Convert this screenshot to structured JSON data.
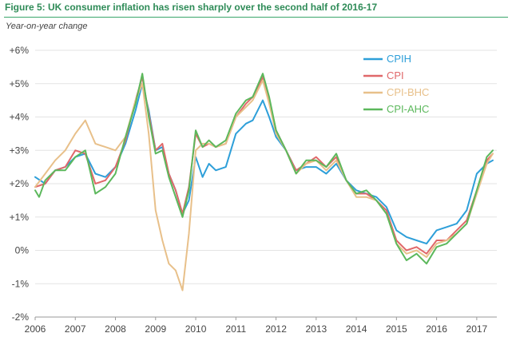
{
  "figure": {
    "title": "Figure 5:  UK consumer inflation has risen sharply over the second half of 2016-17",
    "subtitle": "Year-on-year change"
  },
  "chart_data": {
    "type": "line",
    "title": "Figure 5:  UK consumer inflation has risen sharply over the second half of 2016-17",
    "ylabel": "Year-on-year change",
    "xlabel": "",
    "xlim": [
      2006,
      2017.5
    ],
    "ylim": [
      -2,
      6
    ],
    "y_ticks": [
      {
        "value": 6,
        "label": "+6%"
      },
      {
        "value": 5,
        "label": "+5%"
      },
      {
        "value": 4,
        "label": "+4%"
      },
      {
        "value": 3,
        "label": "+3%"
      },
      {
        "value": 2,
        "label": "+2%"
      },
      {
        "value": 1,
        "label": "+1%"
      },
      {
        "value": 0,
        "label": "0%"
      },
      {
        "value": -1,
        "label": "-1%"
      },
      {
        "value": -2,
        "label": "-2%"
      }
    ],
    "x_ticks": [
      {
        "value": 2006,
        "label": "2006"
      },
      {
        "value": 2007,
        "label": "2007"
      },
      {
        "value": 2008,
        "label": "2008"
      },
      {
        "value": 2009,
        "label": "2009"
      },
      {
        "value": 2010,
        "label": "2010"
      },
      {
        "value": 2011,
        "label": "2011"
      },
      {
        "value": 2012,
        "label": "2012"
      },
      {
        "value": 2013,
        "label": "2013"
      },
      {
        "value": 2014,
        "label": "2014"
      },
      {
        "value": 2015,
        "label": "2015"
      },
      {
        "value": 2016,
        "label": "2016"
      },
      {
        "value": 2017,
        "label": "2017"
      }
    ],
    "grid": "horizontal",
    "legend_position": "top-right",
    "series": [
      {
        "name": "CPIH",
        "color": "#2e9fd9",
        "points": [
          [
            2006,
            2.2
          ],
          [
            2006.25,
            2.0
          ],
          [
            2006.5,
            2.4
          ],
          [
            2006.75,
            2.5
          ],
          [
            2007,
            2.8
          ],
          [
            2007.25,
            2.9
          ],
          [
            2007.5,
            2.3
          ],
          [
            2007.75,
            2.2
          ],
          [
            2008,
            2.5
          ],
          [
            2008.25,
            3.2
          ],
          [
            2008.5,
            4.2
          ],
          [
            2008.67,
            5.0
          ],
          [
            2008.83,
            4.2
          ],
          [
            2009,
            3.0
          ],
          [
            2009.17,
            3.1
          ],
          [
            2009.33,
            2.3
          ],
          [
            2009.5,
            1.8
          ],
          [
            2009.67,
            1.1
          ],
          [
            2009.83,
            1.5
          ],
          [
            2010,
            2.8
          ],
          [
            2010.17,
            2.2
          ],
          [
            2010.33,
            2.6
          ],
          [
            2010.5,
            2.4
          ],
          [
            2010.75,
            2.5
          ],
          [
            2011,
            3.5
          ],
          [
            2011.25,
            3.8
          ],
          [
            2011.42,
            3.9
          ],
          [
            2011.67,
            4.5
          ],
          [
            2011.83,
            4.0
          ],
          [
            2012,
            3.4
          ],
          [
            2012.25,
            3.0
          ],
          [
            2012.5,
            2.4
          ],
          [
            2012.75,
            2.5
          ],
          [
            2013,
            2.5
          ],
          [
            2013.25,
            2.3
          ],
          [
            2013.5,
            2.6
          ],
          [
            2013.75,
            2.1
          ],
          [
            2014,
            1.8
          ],
          [
            2014.25,
            1.7
          ],
          [
            2014.5,
            1.6
          ],
          [
            2014.75,
            1.3
          ],
          [
            2015,
            0.6
          ],
          [
            2015.25,
            0.4
          ],
          [
            2015.5,
            0.3
          ],
          [
            2015.75,
            0.2
          ],
          [
            2016,
            0.6
          ],
          [
            2016.25,
            0.7
          ],
          [
            2016.5,
            0.8
          ],
          [
            2016.75,
            1.2
          ],
          [
            2017,
            2.3
          ],
          [
            2017.25,
            2.6
          ],
          [
            2017.4,
            2.7
          ]
        ]
      },
      {
        "name": "CPI",
        "color": "#e0686a",
        "points": [
          [
            2006,
            1.9
          ],
          [
            2006.25,
            2.0
          ],
          [
            2006.5,
            2.4
          ],
          [
            2006.75,
            2.5
          ],
          [
            2007,
            3.0
          ],
          [
            2007.25,
            2.9
          ],
          [
            2007.5,
            2.0
          ],
          [
            2007.75,
            2.1
          ],
          [
            2008,
            2.5
          ],
          [
            2008.25,
            3.3
          ],
          [
            2008.5,
            4.5
          ],
          [
            2008.67,
            5.2
          ],
          [
            2008.83,
            4.1
          ],
          [
            2009,
            3.0
          ],
          [
            2009.17,
            3.2
          ],
          [
            2009.33,
            2.3
          ],
          [
            2009.5,
            1.8
          ],
          [
            2009.67,
            1.1
          ],
          [
            2009.83,
            1.9
          ],
          [
            2010,
            3.5
          ],
          [
            2010.17,
            3.1
          ],
          [
            2010.33,
            3.2
          ],
          [
            2010.5,
            3.1
          ],
          [
            2010.75,
            3.2
          ],
          [
            2011,
            4.0
          ],
          [
            2011.25,
            4.4
          ],
          [
            2011.42,
            4.6
          ],
          [
            2011.67,
            5.2
          ],
          [
            2011.83,
            4.5
          ],
          [
            2012,
            3.6
          ],
          [
            2012.25,
            3.0
          ],
          [
            2012.5,
            2.4
          ],
          [
            2012.75,
            2.6
          ],
          [
            2013,
            2.8
          ],
          [
            2013.25,
            2.5
          ],
          [
            2013.5,
            2.8
          ],
          [
            2013.75,
            2.1
          ],
          [
            2014,
            1.7
          ],
          [
            2014.25,
            1.7
          ],
          [
            2014.5,
            1.5
          ],
          [
            2014.75,
            1.2
          ],
          [
            2015,
            0.3
          ],
          [
            2015.25,
            0.0
          ],
          [
            2015.5,
            0.1
          ],
          [
            2015.75,
            -0.1
          ],
          [
            2016,
            0.3
          ],
          [
            2016.25,
            0.3
          ],
          [
            2016.5,
            0.6
          ],
          [
            2016.75,
            0.9
          ],
          [
            2017,
            1.8
          ],
          [
            2017.25,
            2.7
          ],
          [
            2017.4,
            2.9
          ]
        ]
      },
      {
        "name": "CPI-BHC",
        "color": "#e8c08a",
        "points": [
          [
            2006,
            1.9
          ],
          [
            2006.25,
            2.3
          ],
          [
            2006.5,
            2.7
          ],
          [
            2006.75,
            3.0
          ],
          [
            2007,
            3.5
          ],
          [
            2007.25,
            3.9
          ],
          [
            2007.5,
            3.2
          ],
          [
            2007.75,
            3.1
          ],
          [
            2008,
            3.0
          ],
          [
            2008.25,
            3.4
          ],
          [
            2008.5,
            4.5
          ],
          [
            2008.67,
            5.0
          ],
          [
            2008.83,
            3.5
          ],
          [
            2009,
            1.2
          ],
          [
            2009.17,
            0.3
          ],
          [
            2009.33,
            -0.4
          ],
          [
            2009.5,
            -0.6
          ],
          [
            2009.67,
            -1.2
          ],
          [
            2009.83,
            0.5
          ],
          [
            2010,
            3.0
          ],
          [
            2010.17,
            3.2
          ],
          [
            2010.33,
            3.2
          ],
          [
            2010.5,
            3.1
          ],
          [
            2010.75,
            3.2
          ],
          [
            2011,
            4.0
          ],
          [
            2011.25,
            4.3
          ],
          [
            2011.42,
            4.5
          ],
          [
            2011.67,
            5.1
          ],
          [
            2011.83,
            4.4
          ],
          [
            2012,
            3.5
          ],
          [
            2012.25,
            3.0
          ],
          [
            2012.5,
            2.3
          ],
          [
            2012.75,
            2.6
          ],
          [
            2013,
            2.7
          ],
          [
            2013.25,
            2.4
          ],
          [
            2013.5,
            2.7
          ],
          [
            2013.75,
            2.1
          ],
          [
            2014,
            1.6
          ],
          [
            2014.25,
            1.6
          ],
          [
            2014.5,
            1.5
          ],
          [
            2014.75,
            1.1
          ],
          [
            2015,
            0.2
          ],
          [
            2015.25,
            -0.1
          ],
          [
            2015.5,
            0.0
          ],
          [
            2015.75,
            -0.2
          ],
          [
            2016,
            0.2
          ],
          [
            2016.25,
            0.3
          ],
          [
            2016.5,
            0.5
          ],
          [
            2016.75,
            0.8
          ],
          [
            2017,
            1.7
          ],
          [
            2017.25,
            2.6
          ],
          [
            2017.4,
            2.9
          ]
        ]
      },
      {
        "name": "CPI-AHC",
        "color": "#5cb85c",
        "points": [
          [
            2006,
            1.8
          ],
          [
            2006.1,
            1.6
          ],
          [
            2006.25,
            2.1
          ],
          [
            2006.5,
            2.4
          ],
          [
            2006.75,
            2.4
          ],
          [
            2007,
            2.8
          ],
          [
            2007.25,
            3.0
          ],
          [
            2007.5,
            1.7
          ],
          [
            2007.75,
            1.9
          ],
          [
            2008,
            2.3
          ],
          [
            2008.25,
            3.4
          ],
          [
            2008.5,
            4.4
          ],
          [
            2008.67,
            5.3
          ],
          [
            2008.83,
            4.0
          ],
          [
            2009,
            2.9
          ],
          [
            2009.17,
            3.0
          ],
          [
            2009.33,
            2.2
          ],
          [
            2009.5,
            1.6
          ],
          [
            2009.67,
            1.0
          ],
          [
            2009.83,
            1.8
          ],
          [
            2010,
            3.6
          ],
          [
            2010.17,
            3.1
          ],
          [
            2010.33,
            3.3
          ],
          [
            2010.5,
            3.1
          ],
          [
            2010.75,
            3.3
          ],
          [
            2011,
            4.1
          ],
          [
            2011.25,
            4.5
          ],
          [
            2011.42,
            4.6
          ],
          [
            2011.67,
            5.3
          ],
          [
            2011.83,
            4.6
          ],
          [
            2012,
            3.6
          ],
          [
            2012.25,
            3.0
          ],
          [
            2012.5,
            2.3
          ],
          [
            2012.75,
            2.7
          ],
          [
            2013,
            2.7
          ],
          [
            2013.25,
            2.5
          ],
          [
            2013.5,
            2.9
          ],
          [
            2013.75,
            2.1
          ],
          [
            2014,
            1.7
          ],
          [
            2014.25,
            1.8
          ],
          [
            2014.5,
            1.5
          ],
          [
            2014.75,
            1.1
          ],
          [
            2015,
            0.2
          ],
          [
            2015.25,
            -0.3
          ],
          [
            2015.5,
            -0.1
          ],
          [
            2015.75,
            -0.4
          ],
          [
            2016,
            0.1
          ],
          [
            2016.25,
            0.2
          ],
          [
            2016.5,
            0.5
          ],
          [
            2016.75,
            0.8
          ],
          [
            2017,
            1.8
          ],
          [
            2017.25,
            2.8
          ],
          [
            2017.4,
            3.0
          ]
        ]
      }
    ]
  }
}
